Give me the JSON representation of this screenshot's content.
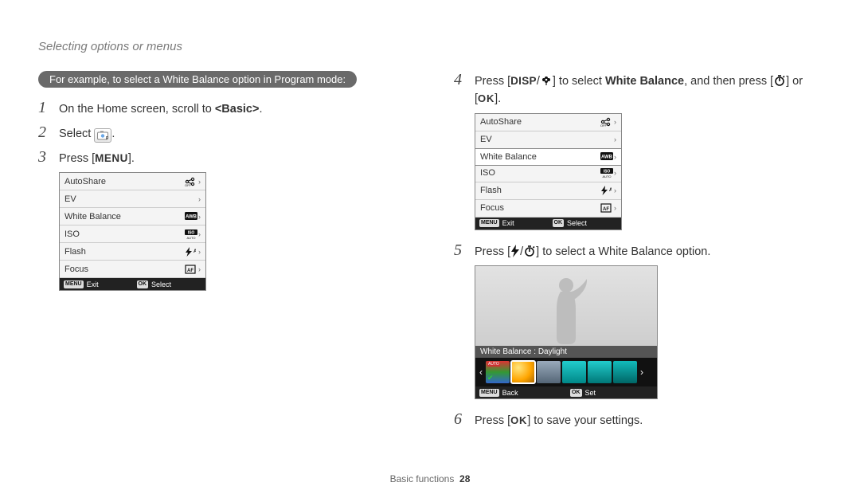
{
  "page_title": "Selecting options or menus",
  "example_header": "For example, to select a White Balance option in Program mode:",
  "steps_left": [
    {
      "num": "1",
      "html": "On the Home screen, scroll to <b>&lt;Basic&gt;</b>."
    },
    {
      "num": "2",
      "html": "Select {p-icon}."
    },
    {
      "num": "3",
      "html": "Press [{menu}]."
    }
  ],
  "steps_right": [
    {
      "num": "4",
      "html": "Press [{disp}/{flower}] to select <b>White Balance</b>, and then press [{timer}] or [{ok}]."
    },
    {
      "num": "5",
      "html": "Press [{flash}/{timer}] to select a White Balance option."
    },
    {
      "num": "6",
      "html": "Press [{ok}] to save your settings."
    }
  ],
  "menu_a": {
    "rows": [
      {
        "label": "AutoShare",
        "icon": "share-off"
      },
      {
        "label": "EV",
        "icon": ""
      },
      {
        "label": "White Balance",
        "icon": "awb"
      },
      {
        "label": "ISO",
        "icon": "iso"
      },
      {
        "label": "Flash",
        "icon": "flash-a"
      },
      {
        "label": "Focus",
        "icon": "focus"
      }
    ],
    "footer_left": "Exit",
    "footer_right": "Select",
    "selected_index": -1
  },
  "menu_b": {
    "rows": [
      {
        "label": "AutoShare",
        "icon": "share-off"
      },
      {
        "label": "EV",
        "icon": ""
      },
      {
        "label": "White Balance",
        "icon": "awb"
      },
      {
        "label": "ISO",
        "icon": "iso"
      },
      {
        "label": "Flash",
        "icon": "flash-a"
      },
      {
        "label": "Focus",
        "icon": "focus"
      }
    ],
    "footer_left": "Exit",
    "footer_right": "Select",
    "selected_index": 2
  },
  "wb_preview": {
    "label": "White Balance : Daylight",
    "swatches": [
      {
        "bg": "linear-gradient(#d33,#393,#36c)",
        "tag": "AUTO"
      },
      {
        "bg": "radial-gradient(circle at 30% 30%, #ffe680, #ffa500 55%, #a06000)",
        "selected": true
      },
      {
        "bg": "linear-gradient(#9ab, #567)"
      },
      {
        "bg": "linear-gradient(#2cc,#088)"
      },
      {
        "bg": "linear-gradient(#2cc,#077)"
      },
      {
        "bg": "linear-gradient(#1bb,#066)"
      }
    ],
    "footer_left": "Back",
    "footer_right": "Set"
  },
  "footer": {
    "section": "Basic functions",
    "page": "28"
  },
  "colors": {
    "header_bg": "#6a6a6a",
    "cam_border": "#888888",
    "cam_bg": "#f4f4f4",
    "cam_footer": "#222222"
  },
  "icons": {
    "disp": "DISP",
    "menu": "MENU",
    "ok": "OK"
  }
}
